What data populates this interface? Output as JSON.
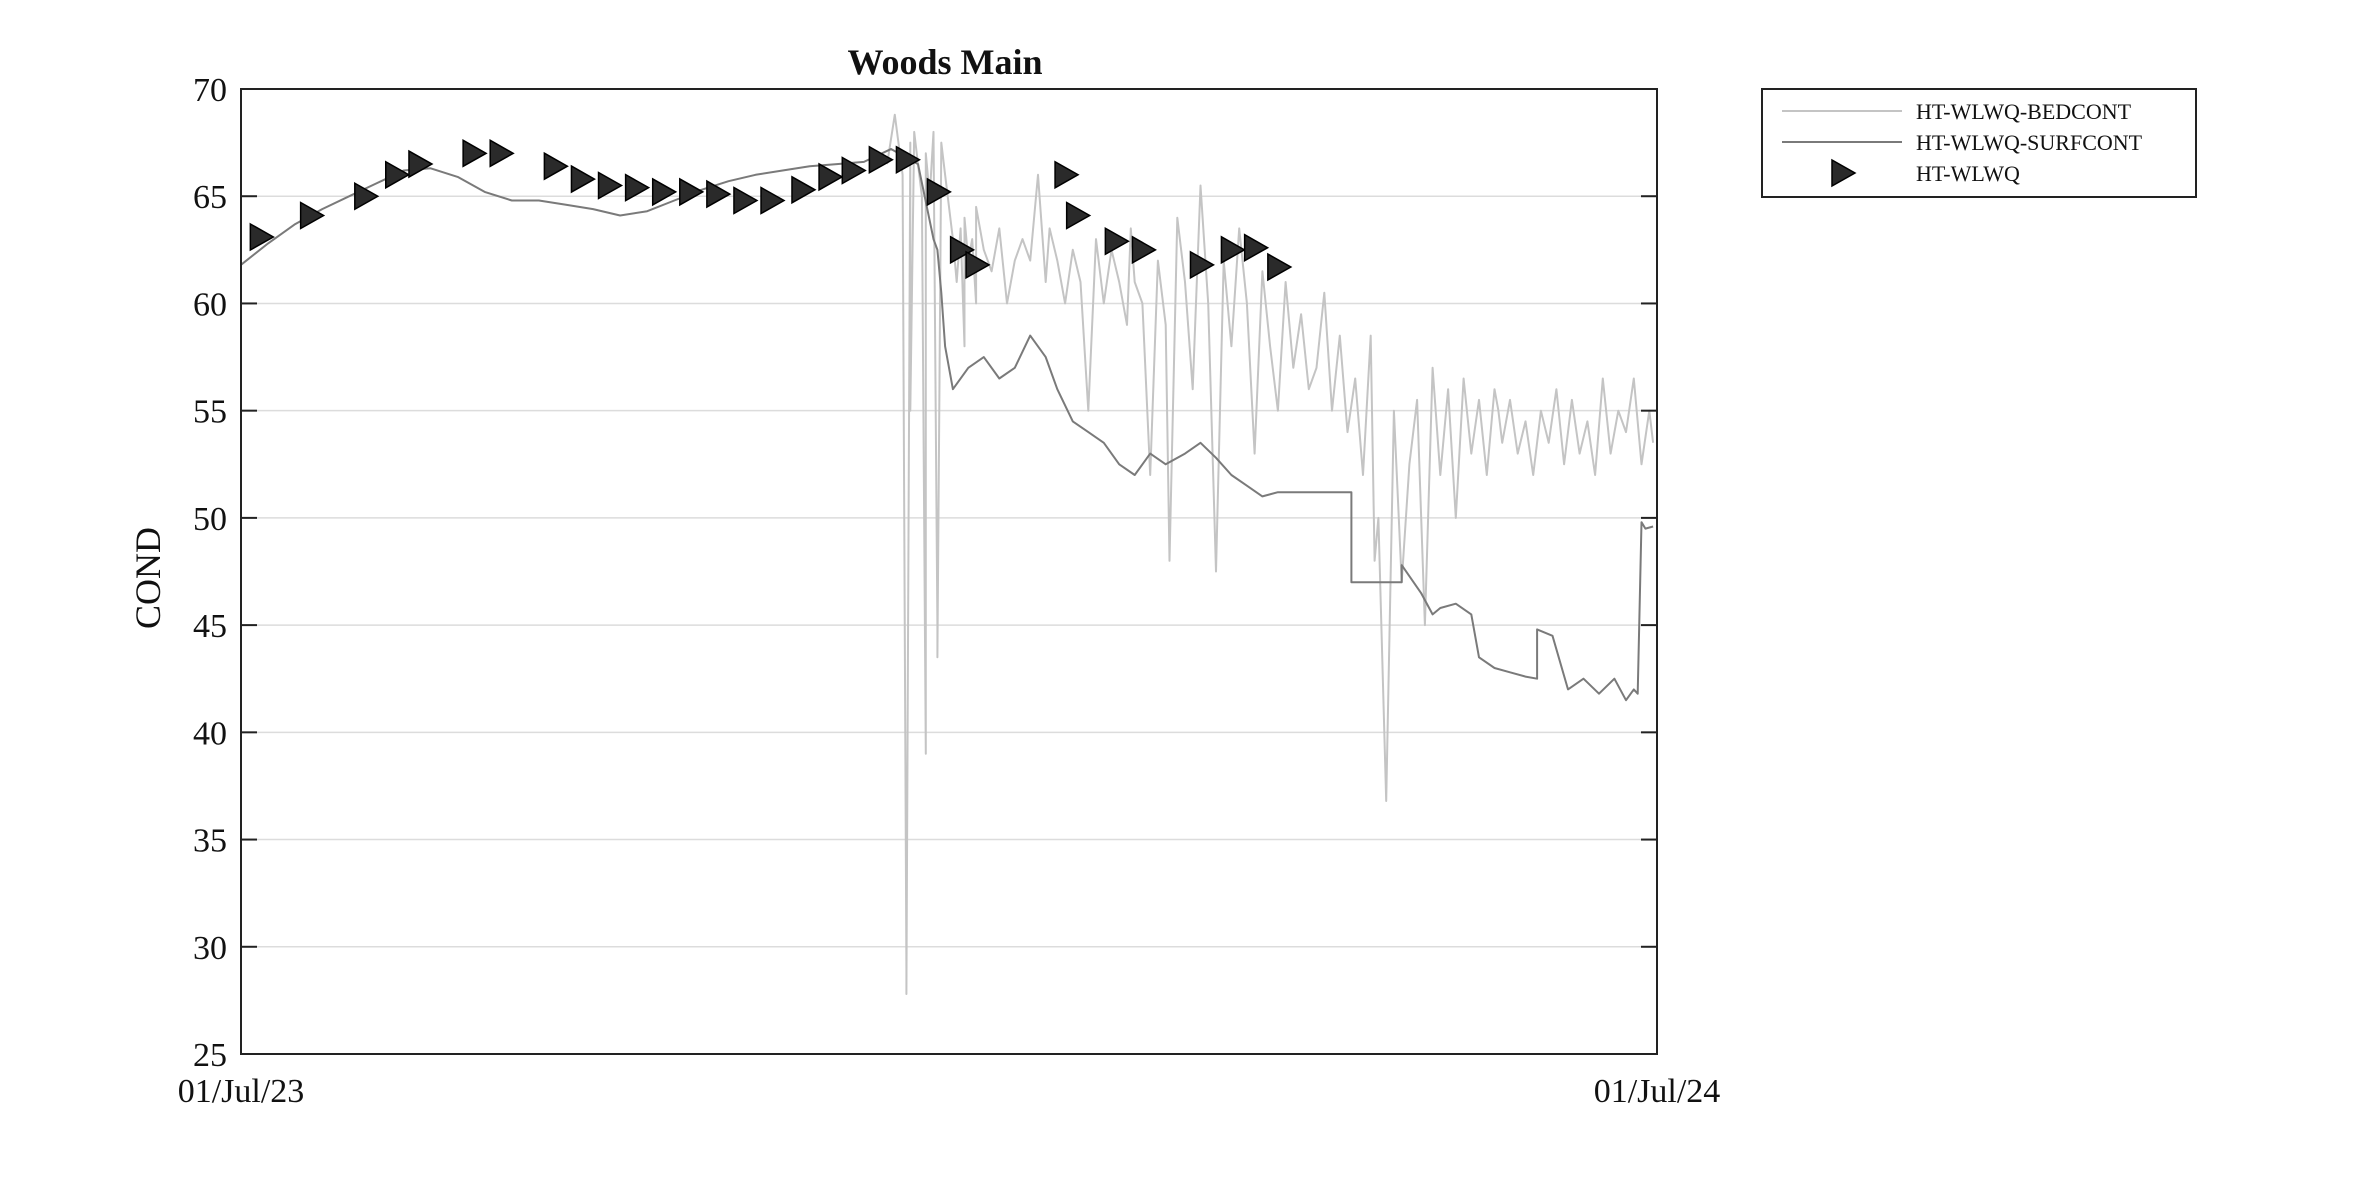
{
  "chart_data": {
    "type": "line",
    "title": "Woods Main",
    "xlabel": "",
    "ylabel": "COND",
    "xlim": [
      "2023-07-01",
      "2024-07-01"
    ],
    "ylim": [
      25,
      70
    ],
    "yticks": [
      25,
      30,
      35,
      40,
      45,
      50,
      55,
      60,
      65,
      70
    ],
    "xtick_labels": [
      "01/Jul/23",
      "01/Jul/24"
    ],
    "grid": "horizontal",
    "legend_position": "outside-top-right",
    "colors": {
      "bedcont": "#c4c4c4",
      "surfcont": "#7a7a7a",
      "marker": "#2a2a2a",
      "grid": "#dcdcdc",
      "axes": "#222222"
    },
    "series": [
      {
        "name": "HT-WLWQ-BEDCONT",
        "style": "line",
        "x": [
          "2023-12-15",
          "2023-12-17",
          "2023-12-19",
          "2023-12-20",
          "2023-12-20",
          "2023-12-21",
          "2023-12-21",
          "2023-12-22",
          "2023-12-23",
          "2023-12-24",
          "2023-12-25",
          "2023-12-25",
          "2023-12-26",
          "2023-12-27",
          "2023-12-28",
          "2023-12-28",
          "2023-12-29",
          "2023-12-30",
          "2023-12-31",
          "2024-01-01",
          "2024-01-02",
          "2024-01-03",
          "2024-01-04",
          "2024-01-04",
          "2024-01-05",
          "2024-01-06",
          "2024-01-07",
          "2024-01-07",
          "2024-01-09",
          "2024-01-11",
          "2024-01-13",
          "2024-01-15",
          "2024-01-17",
          "2024-01-19",
          "2024-01-21",
          "2024-01-23",
          "2024-01-25",
          "2024-01-26",
          "2024-01-28",
          "2024-01-30",
          "2024-02-01",
          "2024-02-03",
          "2024-02-05",
          "2024-02-07",
          "2024-02-09",
          "2024-02-11",
          "2024-02-13",
          "2024-02-15",
          "2024-02-16",
          "2024-02-17",
          "2024-02-19",
          "2024-02-21",
          "2024-02-23",
          "2024-02-25",
          "2024-02-26",
          "2024-02-28",
          "2024-03-01",
          "2024-03-03",
          "2024-03-05",
          "2024-03-07",
          "2024-03-09",
          "2024-03-11",
          "2024-03-13",
          "2024-03-15",
          "2024-03-17",
          "2024-03-19",
          "2024-03-21",
          "2024-03-23",
          "2024-03-25",
          "2024-03-27",
          "2024-03-29",
          "2024-03-31",
          "2024-04-02",
          "2024-04-04",
          "2024-04-06",
          "2024-04-08",
          "2024-04-10",
          "2024-04-12",
          "2024-04-14",
          "2024-04-16",
          "2024-04-18",
          "2024-04-19",
          "2024-04-20",
          "2024-04-22",
          "2024-04-24",
          "2024-04-26",
          "2024-04-28",
          "2024-04-30",
          "2024-05-02",
          "2024-05-04",
          "2024-05-06",
          "2024-05-08",
          "2024-05-10",
          "2024-05-12",
          "2024-05-14",
          "2024-05-16",
          "2024-05-18",
          "2024-05-20",
          "2024-05-21",
          "2024-05-22",
          "2024-05-24",
          "2024-05-26",
          "2024-05-28",
          "2024-05-30",
          "2024-06-01",
          "2024-06-03",
          "2024-06-05",
          "2024-06-07",
          "2024-06-09",
          "2024-06-11",
          "2024-06-13",
          "2024-06-15",
          "2024-06-17",
          "2024-06-19",
          "2024-06-21",
          "2024-06-23",
          "2024-06-25",
          "2024-06-27",
          "2024-06-29",
          "2024-06-30"
        ],
        "values": [
          66.5,
          68.8,
          66.0,
          29.0,
          27.8,
          67.5,
          55.0,
          68.0,
          66.5,
          65.0,
          39.0,
          67.0,
          65.0,
          68.0,
          45.0,
          43.5,
          67.5,
          66.0,
          64.5,
          63.0,
          61.0,
          63.5,
          58.0,
          64.0,
          62.0,
          63.0,
          60.0,
          64.5,
          62.5,
          61.5,
          63.5,
          60.0,
          62.0,
          63.0,
          62.0,
          66.0,
          61.0,
          63.5,
          62.0,
          60.0,
          62.5,
          61.0,
          55.0,
          63.0,
          60.0,
          62.5,
          61.0,
          59.0,
          63.5,
          61.0,
          60.0,
          52.0,
          62.0,
          59.0,
          48.0,
          64.0,
          61.0,
          56.0,
          65.5,
          60.0,
          47.5,
          62.0,
          58.0,
          63.5,
          60.0,
          53.0,
          61.5,
          58.0,
          55.0,
          61.0,
          57.0,
          59.5,
          56.0,
          57.0,
          60.5,
          55.0,
          58.5,
          54.0,
          56.5,
          52.0,
          58.5,
          48.0,
          50.0,
          36.8,
          55.0,
          47.0,
          52.5,
          55.5,
          45.0,
          57.0,
          52.0,
          56.0,
          50.0,
          56.5,
          53.0,
          55.5,
          52.0,
          56.0,
          55.0,
          53.5,
          55.5,
          53.0,
          54.5,
          52.0,
          55.0,
          53.5,
          56.0,
          52.5,
          55.5,
          53.0,
          54.5,
          52.0,
          56.5,
          53.0,
          55.0,
          54.0,
          56.5,
          52.5,
          55.0,
          53.5
        ]
      },
      {
        "name": "HT-WLWQ-SURFCONT",
        "style": "line",
        "x": [
          "2023-07-01",
          "2023-07-08",
          "2023-07-15",
          "2023-07-22",
          "2023-07-29",
          "2023-08-05",
          "2023-08-12",
          "2023-08-19",
          "2023-08-26",
          "2023-09-02",
          "2023-09-09",
          "2023-09-16",
          "2023-09-23",
          "2023-09-30",
          "2023-10-07",
          "2023-10-14",
          "2023-10-21",
          "2023-10-28",
          "2023-11-04",
          "2023-11-11",
          "2023-11-18",
          "2023-11-25",
          "2023-12-02",
          "2023-12-09",
          "2023-12-16",
          "2023-12-23",
          "2023-12-27",
          "2023-12-28",
          "2023-12-29",
          "2023-12-30",
          "2024-01-01",
          "2024-01-05",
          "2024-01-09",
          "2024-01-13",
          "2024-01-17",
          "2024-01-21",
          "2024-01-25",
          "2024-01-28",
          "2024-02-01",
          "2024-02-05",
          "2024-02-09",
          "2024-02-13",
          "2024-02-17",
          "2024-02-21",
          "2024-02-25",
          "2024-03-01",
          "2024-03-05",
          "2024-03-09",
          "2024-03-13",
          "2024-03-17",
          "2024-03-21",
          "2024-03-25",
          "2024-03-29",
          "2024-04-02",
          "2024-04-06",
          "2024-04-10",
          "2024-04-13",
          "2024-04-13",
          "2024-04-14",
          "2024-04-26",
          "2024-04-26",
          "2024-05-01",
          "2024-05-04",
          "2024-05-06",
          "2024-05-10",
          "2024-05-14",
          "2024-05-16",
          "2024-05-20",
          "2024-05-24",
          "2024-05-28",
          "2024-05-31",
          "2024-05-31",
          "2024-06-04",
          "2024-06-08",
          "2024-06-12",
          "2024-06-16",
          "2024-06-20",
          "2024-06-23",
          "2024-06-25",
          "2024-06-26",
          "2024-06-27",
          "2024-06-28",
          "2024-06-30"
        ],
        "values": [
          61.8,
          62.8,
          63.7,
          64.4,
          65.0,
          65.6,
          66.2,
          66.3,
          65.9,
          65.2,
          64.8,
          64.8,
          64.6,
          64.4,
          64.1,
          64.3,
          64.8,
          65.3,
          65.7,
          66.0,
          66.2,
          66.4,
          66.5,
          66.6,
          67.2,
          66.5,
          63.0,
          62.5,
          60.5,
          58.0,
          56.0,
          57.0,
          57.5,
          56.5,
          57.0,
          58.5,
          57.5,
          56.0,
          54.5,
          54.0,
          53.5,
          52.5,
          52.0,
          53.0,
          52.5,
          53.0,
          53.5,
          52.8,
          52.0,
          51.5,
          51.0,
          51.2,
          51.2,
          51.2,
          51.2,
          51.2,
          51.2,
          47.0,
          47.0,
          47.0,
          47.8,
          46.5,
          45.5,
          45.8,
          46.0,
          45.5,
          43.5,
          43.0,
          42.8,
          42.6,
          42.5,
          44.8,
          44.5,
          42.0,
          42.5,
          41.8,
          42.5,
          41.5,
          42.0,
          41.8,
          49.8,
          49.5,
          49.6
        ]
      },
      {
        "name": "HT-WLWQ",
        "style": "marker",
        "marker": "triangle-right",
        "x": [
          "2023-07-06",
          "2023-07-19",
          "2023-08-02",
          "2023-08-10",
          "2023-08-16",
          "2023-08-30",
          "2023-09-06",
          "2023-09-20",
          "2023-09-27",
          "2023-10-04",
          "2023-10-11",
          "2023-10-18",
          "2023-10-25",
          "2023-11-01",
          "2023-11-08",
          "2023-11-15",
          "2023-11-23",
          "2023-11-30",
          "2023-12-06",
          "2023-12-13",
          "2023-12-20",
          "2023-12-28",
          "2024-01-03",
          "2024-01-07",
          "2024-01-30",
          "2024-02-02",
          "2024-02-12",
          "2024-02-19",
          "2024-03-05",
          "2024-03-13",
          "2024-03-19",
          "2024-03-25"
        ],
        "values": [
          63.1,
          64.1,
          65.0,
          66.0,
          66.5,
          67.0,
          67.0,
          66.4,
          65.8,
          65.5,
          65.4,
          65.2,
          65.2,
          65.1,
          64.8,
          64.8,
          65.3,
          65.9,
          66.2,
          66.7,
          66.7,
          65.2,
          62.5,
          61.8,
          66.0,
          64.1,
          62.9,
          62.5,
          61.8,
          62.5,
          62.6,
          61.7
        ]
      }
    ]
  }
}
